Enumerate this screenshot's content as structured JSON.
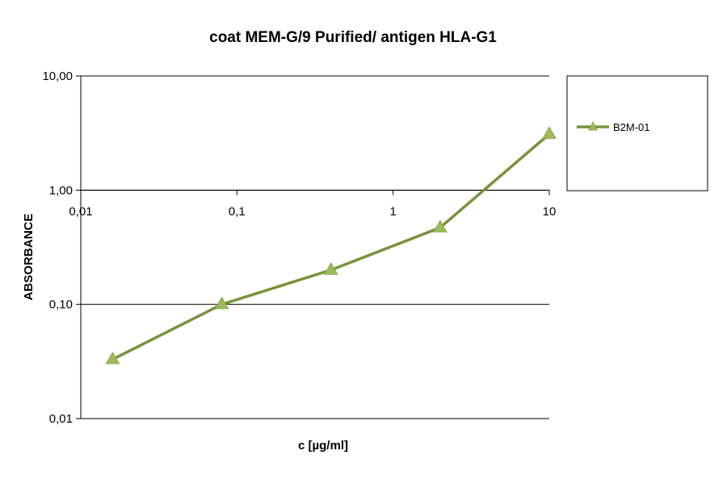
{
  "chart_data": {
    "type": "line",
    "title": "coat MEM-G/9 Purified/ antigen HLA-G1",
    "xlabel": "c [µg/ml]",
    "ylabel": "ABSORBANCE",
    "x_scale": "log",
    "y_scale": "log",
    "xlim": [
      0.01,
      10
    ],
    "ylim": [
      0.01,
      10
    ],
    "x_tick_labels": [
      "0,01",
      "0,1",
      "1",
      "10"
    ],
    "x_tick_values": [
      0.01,
      0.1,
      1,
      10
    ],
    "y_tick_labels": [
      "0,01",
      "0,10",
      "1,00",
      "10,00"
    ],
    "y_tick_values": [
      0.01,
      0.1,
      1,
      10
    ],
    "x_axis_crosses_y_at": 1,
    "grid": "horizontal major gridlines",
    "legend_position": "right",
    "series": [
      {
        "name": "B2M-01",
        "color": "#77933C",
        "marker": "triangle",
        "x": [
          0.016,
          0.08,
          0.4,
          2,
          10
        ],
        "y": [
          0.033,
          0.1,
          0.2,
          0.47,
          3.1
        ]
      }
    ]
  }
}
